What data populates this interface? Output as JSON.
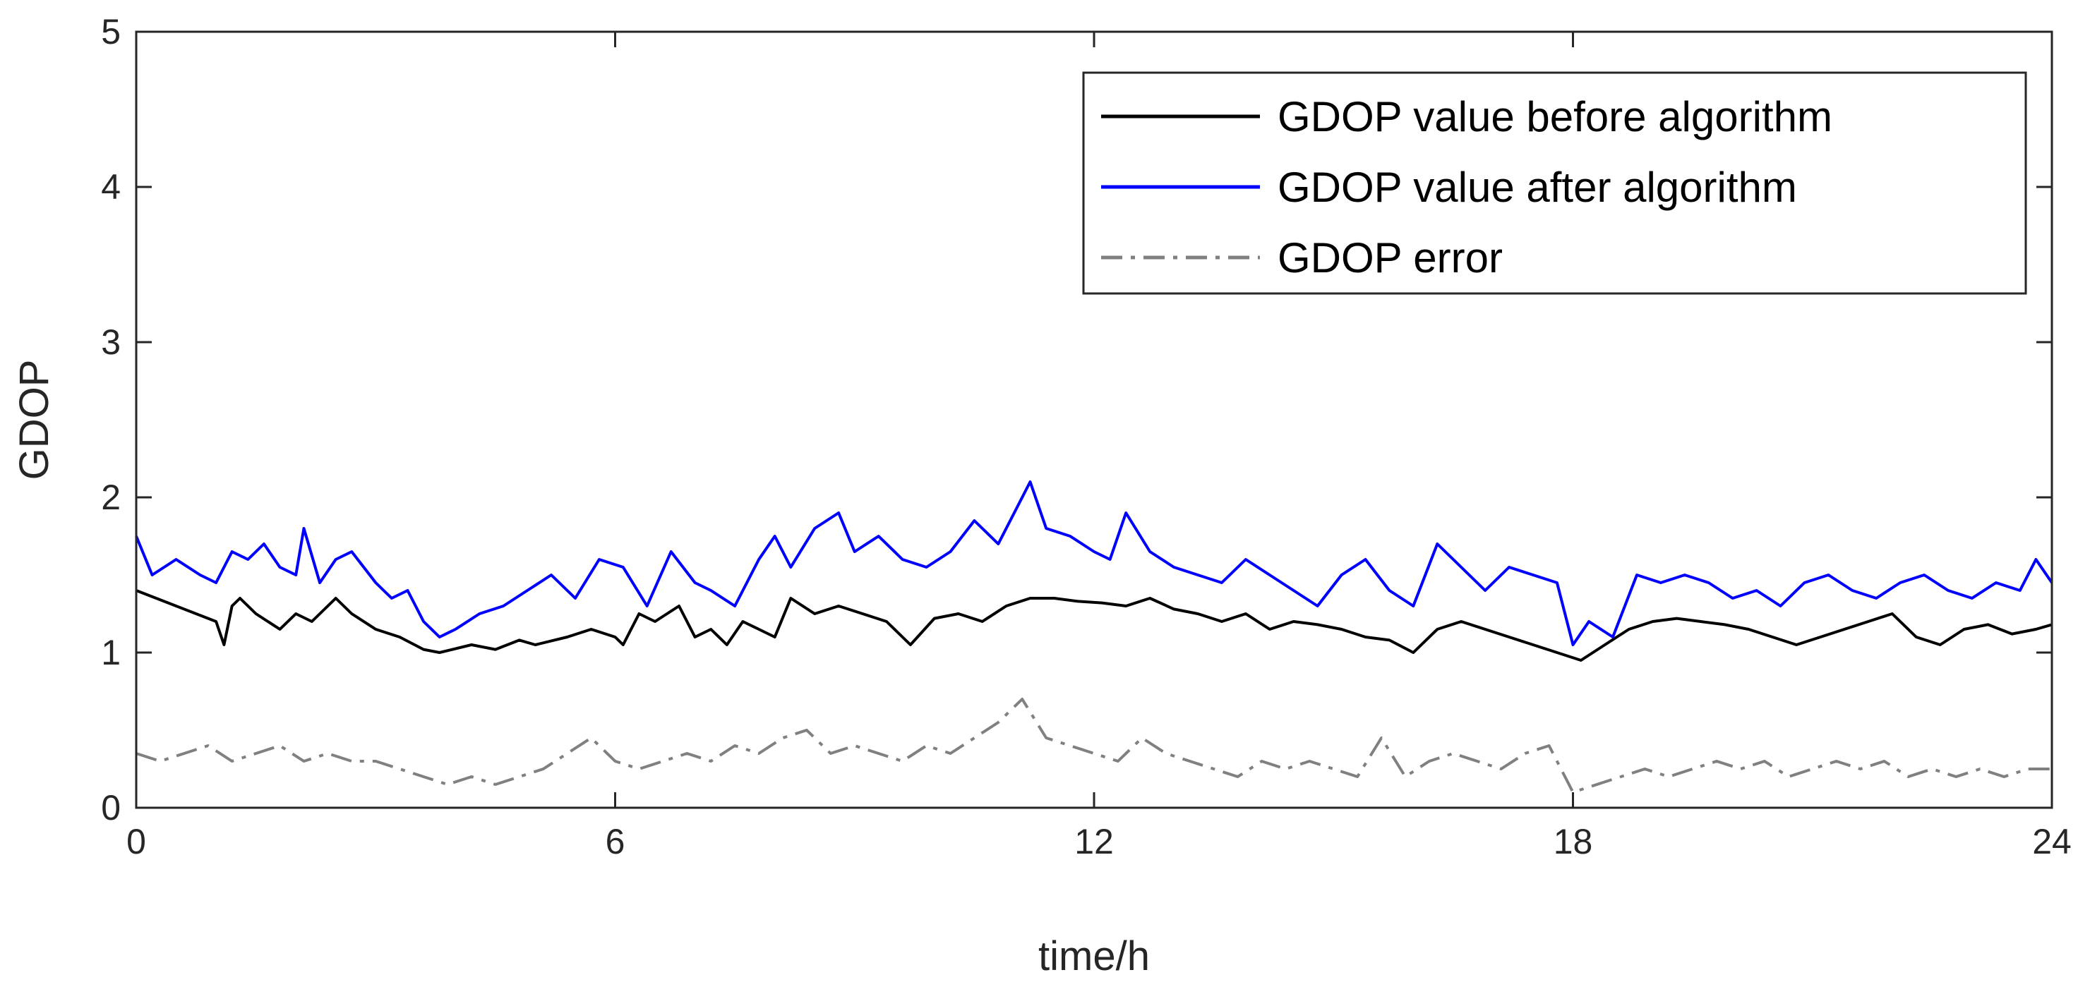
{
  "chart_data": {
    "type": "line",
    "xlabel": "time/h",
    "ylabel": "GDOP",
    "xlim": [
      0,
      24
    ],
    "ylim": [
      0,
      5
    ],
    "xticks": [
      "0",
      "6",
      "12",
      "18",
      "24"
    ],
    "yticks": [
      "0",
      "1",
      "2",
      "3",
      "4",
      "5"
    ],
    "grid": false,
    "legend_position": "top-right",
    "series": [
      {
        "name": "GDOP value before algorithm",
        "color": "#000000",
        "style": "solid",
        "x": [
          0,
          0.5,
          1.0,
          1.1,
          1.2,
          1.3,
          1.5,
          1.8,
          2.0,
          2.2,
          2.5,
          2.7,
          3.0,
          3.3,
          3.6,
          3.8,
          4.2,
          4.5,
          4.8,
          5.0,
          5.4,
          5.7,
          6.0,
          6.1,
          6.3,
          6.5,
          6.8,
          7.0,
          7.2,
          7.4,
          7.6,
          7.8,
          8.0,
          8.2,
          8.5,
          8.8,
          9.1,
          9.4,
          9.7,
          10.0,
          10.3,
          10.6,
          10.9,
          11.2,
          11.5,
          11.8,
          12.1,
          12.4,
          12.7,
          13.0,
          13.3,
          13.6,
          13.9,
          14.2,
          14.5,
          14.8,
          15.1,
          15.4,
          15.7,
          16.0,
          16.3,
          16.6,
          16.9,
          17.2,
          17.5,
          17.8,
          18.1,
          18.4,
          18.7,
          19.0,
          19.3,
          19.6,
          19.9,
          20.2,
          20.5,
          20.8,
          21.1,
          21.4,
          21.7,
          22.0,
          22.3,
          22.6,
          22.9,
          23.2,
          23.5,
          23.8,
          24.0
        ],
        "y": [
          1.4,
          1.3,
          1.2,
          1.05,
          1.3,
          1.35,
          1.25,
          1.15,
          1.25,
          1.2,
          1.35,
          1.25,
          1.15,
          1.1,
          1.02,
          1.0,
          1.05,
          1.02,
          1.08,
          1.05,
          1.1,
          1.15,
          1.1,
          1.05,
          1.25,
          1.2,
          1.3,
          1.1,
          1.15,
          1.05,
          1.2,
          1.15,
          1.1,
          1.35,
          1.25,
          1.3,
          1.25,
          1.2,
          1.05,
          1.22,
          1.25,
          1.2,
          1.3,
          1.35,
          1.35,
          1.33,
          1.32,
          1.3,
          1.35,
          1.28,
          1.25,
          1.2,
          1.25,
          1.15,
          1.2,
          1.18,
          1.15,
          1.1,
          1.08,
          1.0,
          1.15,
          1.2,
          1.15,
          1.1,
          1.05,
          1.0,
          0.95,
          1.05,
          1.15,
          1.2,
          1.22,
          1.2,
          1.18,
          1.15,
          1.1,
          1.05,
          1.1,
          1.15,
          1.2,
          1.25,
          1.1,
          1.05,
          1.15,
          1.18,
          1.12,
          1.15,
          1.18
        ]
      },
      {
        "name": "GDOP value after algorithm",
        "color": "#0000ff",
        "style": "solid",
        "x": [
          0,
          0.2,
          0.5,
          0.8,
          1.0,
          1.2,
          1.4,
          1.6,
          1.8,
          2.0,
          2.1,
          2.3,
          2.5,
          2.7,
          3.0,
          3.2,
          3.4,
          3.6,
          3.8,
          4.0,
          4.3,
          4.6,
          4.9,
          5.2,
          5.5,
          5.8,
          6.1,
          6.4,
          6.7,
          7.0,
          7.2,
          7.5,
          7.8,
          8.0,
          8.2,
          8.5,
          8.8,
          9.0,
          9.3,
          9.6,
          9.9,
          10.2,
          10.5,
          10.8,
          11.0,
          11.2,
          11.4,
          11.7,
          12.0,
          12.2,
          12.4,
          12.7,
          13.0,
          13.3,
          13.6,
          13.9,
          14.2,
          14.5,
          14.8,
          15.1,
          15.4,
          15.7,
          16.0,
          16.3,
          16.6,
          16.9,
          17.2,
          17.5,
          17.8,
          18.0,
          18.2,
          18.5,
          18.8,
          19.1,
          19.4,
          19.7,
          20.0,
          20.3,
          20.6,
          20.9,
          21.2,
          21.5,
          21.8,
          22.1,
          22.4,
          22.7,
          23.0,
          23.3,
          23.6,
          23.8,
          24.0
        ],
        "y": [
          1.75,
          1.5,
          1.6,
          1.5,
          1.45,
          1.65,
          1.6,
          1.7,
          1.55,
          1.5,
          1.8,
          1.45,
          1.6,
          1.65,
          1.45,
          1.35,
          1.4,
          1.2,
          1.1,
          1.15,
          1.25,
          1.3,
          1.4,
          1.5,
          1.35,
          1.6,
          1.55,
          1.3,
          1.65,
          1.45,
          1.4,
          1.3,
          1.6,
          1.75,
          1.55,
          1.8,
          1.9,
          1.65,
          1.75,
          1.6,
          1.55,
          1.65,
          1.85,
          1.7,
          1.9,
          2.1,
          1.8,
          1.75,
          1.65,
          1.6,
          1.9,
          1.65,
          1.55,
          1.5,
          1.45,
          1.6,
          1.5,
          1.4,
          1.3,
          1.5,
          1.6,
          1.4,
          1.3,
          1.7,
          1.55,
          1.4,
          1.55,
          1.5,
          1.45,
          1.05,
          1.2,
          1.1,
          1.5,
          1.45,
          1.5,
          1.45,
          1.35,
          1.4,
          1.3,
          1.45,
          1.5,
          1.4,
          1.35,
          1.45,
          1.5,
          1.4,
          1.35,
          1.45,
          1.4,
          1.6,
          1.45
        ]
      },
      {
        "name": "GDOP error",
        "color": "#808080",
        "style": "dashdot",
        "x": [
          0,
          0.3,
          0.6,
          0.9,
          1.2,
          1.5,
          1.8,
          2.1,
          2.4,
          2.7,
          3.0,
          3.3,
          3.6,
          3.9,
          4.2,
          4.5,
          4.8,
          5.1,
          5.4,
          5.7,
          6.0,
          6.3,
          6.6,
          6.9,
          7.2,
          7.5,
          7.8,
          8.1,
          8.4,
          8.7,
          9.0,
          9.3,
          9.6,
          9.9,
          10.2,
          10.5,
          10.8,
          11.1,
          11.4,
          11.7,
          12.0,
          12.3,
          12.6,
          12.9,
          13.2,
          13.5,
          13.8,
          14.1,
          14.4,
          14.7,
          15.0,
          15.3,
          15.6,
          15.9,
          16.2,
          16.5,
          16.8,
          17.1,
          17.4,
          17.7,
          18.0,
          18.3,
          18.6,
          18.9,
          19.2,
          19.5,
          19.8,
          20.1,
          20.4,
          20.7,
          21.0,
          21.3,
          21.6,
          21.9,
          22.2,
          22.5,
          22.8,
          23.1,
          23.4,
          23.7,
          24.0
        ],
        "y": [
          0.35,
          0.3,
          0.35,
          0.4,
          0.3,
          0.35,
          0.4,
          0.3,
          0.35,
          0.3,
          0.3,
          0.25,
          0.2,
          0.15,
          0.2,
          0.15,
          0.2,
          0.25,
          0.35,
          0.45,
          0.3,
          0.25,
          0.3,
          0.35,
          0.3,
          0.4,
          0.35,
          0.45,
          0.5,
          0.35,
          0.4,
          0.35,
          0.3,
          0.4,
          0.35,
          0.45,
          0.55,
          0.7,
          0.45,
          0.4,
          0.35,
          0.3,
          0.45,
          0.35,
          0.3,
          0.25,
          0.2,
          0.3,
          0.25,
          0.3,
          0.25,
          0.2,
          0.45,
          0.2,
          0.3,
          0.35,
          0.3,
          0.25,
          0.35,
          0.4,
          0.1,
          0.15,
          0.2,
          0.25,
          0.2,
          0.25,
          0.3,
          0.25,
          0.3,
          0.2,
          0.25,
          0.3,
          0.25,
          0.3,
          0.2,
          0.25,
          0.2,
          0.25,
          0.2,
          0.25,
          0.25
        ]
      }
    ]
  }
}
